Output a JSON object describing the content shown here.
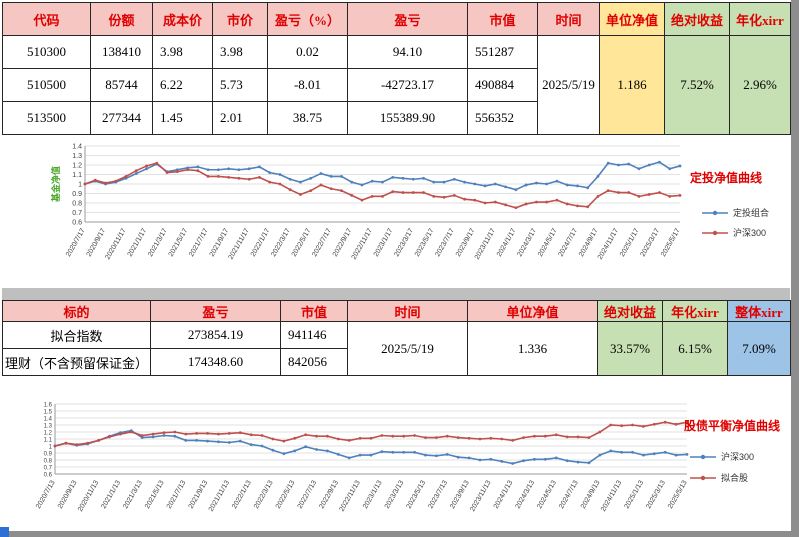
{
  "colors": {
    "header_pink": "#f5c6c2",
    "highlight_yellow": "#ffe699",
    "highlight_green": "#c6e0b4",
    "highlight_blue": "#9dc3e6",
    "header_text_red": "#e00000",
    "series_blue": "#4f81bd",
    "series_red": "#c0504d"
  },
  "table1": {
    "headers": [
      "代码",
      "份额",
      "成本价",
      "市价",
      "盈亏（%）",
      "盈亏",
      "市值",
      "时间",
      "单位净值",
      "绝对收益",
      "年化xirr"
    ],
    "rows": [
      {
        "code": "510300",
        "shares": "138410",
        "cost": "3.98",
        "price": "3.98",
        "pnl_pct": "0.02",
        "pnl": "94.10",
        "value": "551287"
      },
      {
        "code": "510500",
        "shares": "85744",
        "cost": "6.22",
        "price": "5.73",
        "pnl_pct": "-8.01",
        "pnl": "-42723.17",
        "value": "490884"
      },
      {
        "code": "513500",
        "shares": "277344",
        "cost": "1.45",
        "price": "2.01",
        "pnl_pct": "38.75",
        "pnl": "155389.90",
        "value": "556352"
      }
    ],
    "time": "2025/5/19",
    "unit_nav": "1.186",
    "abs_return": "7.52%",
    "xirr": "2.96%"
  },
  "table2": {
    "headers": [
      "标的",
      "盈亏",
      "市值",
      "时间",
      "单位净值",
      "绝对收益",
      "年化xirr",
      "整体xirr"
    ],
    "rows": [
      {
        "name": "拟合指数",
        "pnl": "273854.19",
        "value": "941146"
      },
      {
        "name": "理财（不含预留保证金）",
        "pnl": "174348.60",
        "value": "842056"
      }
    ],
    "time": "2025/5/19",
    "unit_nav": "1.336",
    "abs_return": "33.57%",
    "xirr": "6.15%",
    "overall_xirr": "7.09%"
  },
  "chart_data": [
    {
      "type": "line",
      "title": "定投净值曲线",
      "title_color": "#e00000",
      "ylabel": "基金净值",
      "ylabel_color": "#4ea72e",
      "ylim": [
        0.6,
        1.4
      ],
      "yticks": [
        0.6,
        0.7,
        0.8,
        0.9,
        1.0,
        1.1,
        1.2,
        1.3,
        1.4
      ],
      "grid": true,
      "legend_position": "right",
      "xtick_every": 2,
      "x": [
        "2020/7/17",
        "2020/8/17",
        "2020/9/17",
        "2020/10/17",
        "2020/11/17",
        "2020/12/17",
        "2021/1/17",
        "2021/2/17",
        "2021/3/17",
        "2021/4/17",
        "2021/5/17",
        "2021/6/17",
        "2021/7/17",
        "2021/8/17",
        "2021/9/17",
        "2021/10/17",
        "2021/11/17",
        "2021/12/17",
        "2022/1/17",
        "2022/2/17",
        "2022/3/17",
        "2022/4/17",
        "2022/5/17",
        "2022/6/17",
        "2022/7/17",
        "2022/8/17",
        "2022/9/17",
        "2022/10/17",
        "2022/11/17",
        "2022/12/17",
        "2023/1/17",
        "2023/2/17",
        "2023/3/17",
        "2023/4/17",
        "2023/5/17",
        "2023/6/17",
        "2023/7/17",
        "2023/8/17",
        "2023/9/17",
        "2023/10/17",
        "2023/11/17",
        "2023/12/17",
        "2024/1/17",
        "2024/2/17",
        "2024/3/17",
        "2024/4/17",
        "2024/5/17",
        "2024/6/17",
        "2024/7/17",
        "2024/8/17",
        "2024/9/17",
        "2024/10/17",
        "2024/11/17",
        "2024/12/17",
        "2025/1/17",
        "2025/2/17",
        "2025/3/17",
        "2025/4/17",
        "2025/5/17"
      ],
      "series": [
        {
          "name": "定投组合",
          "color": "#4f81bd",
          "values": [
            1.0,
            1.03,
            1.0,
            1.02,
            1.06,
            1.11,
            1.16,
            1.21,
            1.13,
            1.15,
            1.17,
            1.18,
            1.15,
            1.15,
            1.16,
            1.15,
            1.16,
            1.18,
            1.12,
            1.1,
            1.05,
            1.02,
            1.06,
            1.11,
            1.08,
            1.08,
            1.02,
            0.99,
            1.03,
            1.02,
            1.07,
            1.06,
            1.05,
            1.06,
            1.02,
            1.02,
            1.05,
            1.02,
            1.0,
            0.98,
            1.0,
            0.97,
            0.94,
            0.99,
            1.01,
            1.0,
            1.03,
            0.99,
            0.98,
            0.96,
            1.08,
            1.22,
            1.2,
            1.21,
            1.16,
            1.2,
            1.23,
            1.16,
            1.19
          ]
        },
        {
          "name": "沪深300",
          "color": "#c0504d",
          "values": [
            1.0,
            1.04,
            1.01,
            1.03,
            1.08,
            1.14,
            1.19,
            1.22,
            1.12,
            1.13,
            1.15,
            1.14,
            1.08,
            1.08,
            1.07,
            1.06,
            1.05,
            1.07,
            1.02,
            1.0,
            0.94,
            0.89,
            0.93,
            0.99,
            0.95,
            0.93,
            0.88,
            0.83,
            0.87,
            0.87,
            0.92,
            0.91,
            0.91,
            0.91,
            0.87,
            0.86,
            0.88,
            0.84,
            0.83,
            0.8,
            0.81,
            0.78,
            0.75,
            0.79,
            0.81,
            0.81,
            0.83,
            0.79,
            0.77,
            0.76,
            0.87,
            0.93,
            0.91,
            0.91,
            0.87,
            0.89,
            0.91,
            0.87,
            0.88
          ]
        }
      ]
    },
    {
      "type": "line",
      "title": "股债平衡净值曲线",
      "title_color": "#e00000",
      "ylim": [
        0.6,
        1.6
      ],
      "yticks": [
        0.6,
        0.7,
        0.8,
        0.9,
        1.0,
        1.1,
        1.2,
        1.3,
        1.4,
        1.5,
        1.6
      ],
      "grid": true,
      "legend_position": "right",
      "xtick_every": 2,
      "x": [
        "2020/7/13",
        "2020/8/13",
        "2020/9/13",
        "2020/10/13",
        "2020/11/13",
        "2020/12/13",
        "2021/1/13",
        "2021/2/13",
        "2021/3/13",
        "2021/4/13",
        "2021/5/13",
        "2021/6/13",
        "2021/7/13",
        "2021/8/13",
        "2021/9/13",
        "2021/10/13",
        "2021/11/13",
        "2021/12/13",
        "2022/1/13",
        "2022/2/13",
        "2022/3/13",
        "2022/4/13",
        "2022/5/13",
        "2022/6/13",
        "2022/7/13",
        "2022/8/13",
        "2022/9/13",
        "2022/10/13",
        "2022/11/13",
        "2022/12/13",
        "2023/1/13",
        "2023/2/13",
        "2023/3/13",
        "2023/4/13",
        "2023/5/13",
        "2023/6/13",
        "2023/7/13",
        "2023/8/13",
        "2023/9/13",
        "2023/10/13",
        "2023/11/13",
        "2023/12/13",
        "2024/1/13",
        "2024/2/13",
        "2024/3/13",
        "2024/4/13",
        "2024/5/13",
        "2024/6/13",
        "2024/7/13",
        "2024/8/13",
        "2024/9/13",
        "2024/10/13",
        "2024/11/13",
        "2024/12/13",
        "2025/1/13",
        "2025/2/13",
        "2025/3/13",
        "2025/4/13",
        "2025/5/13"
      ],
      "series": [
        {
          "name": "沪深300",
          "color": "#4f81bd",
          "values": [
            1.0,
            1.04,
            1.01,
            1.03,
            1.08,
            1.14,
            1.19,
            1.22,
            1.12,
            1.13,
            1.15,
            1.14,
            1.08,
            1.08,
            1.07,
            1.06,
            1.05,
            1.07,
            1.02,
            1.0,
            0.94,
            0.89,
            0.93,
            0.99,
            0.95,
            0.93,
            0.88,
            0.83,
            0.87,
            0.87,
            0.92,
            0.91,
            0.91,
            0.91,
            0.87,
            0.86,
            0.88,
            0.84,
            0.83,
            0.8,
            0.81,
            0.78,
            0.75,
            0.79,
            0.81,
            0.81,
            0.83,
            0.79,
            0.77,
            0.76,
            0.87,
            0.93,
            0.91,
            0.91,
            0.87,
            0.89,
            0.91,
            0.87,
            0.88
          ]
        },
        {
          "name": "拟合股",
          "color": "#c0504d",
          "values": [
            1.0,
            1.04,
            1.02,
            1.04,
            1.08,
            1.13,
            1.17,
            1.2,
            1.15,
            1.17,
            1.19,
            1.2,
            1.17,
            1.18,
            1.18,
            1.17,
            1.18,
            1.19,
            1.16,
            1.15,
            1.1,
            1.07,
            1.11,
            1.16,
            1.14,
            1.14,
            1.1,
            1.08,
            1.11,
            1.11,
            1.15,
            1.14,
            1.14,
            1.15,
            1.12,
            1.12,
            1.14,
            1.12,
            1.11,
            1.1,
            1.11,
            1.1,
            1.08,
            1.12,
            1.14,
            1.14,
            1.16,
            1.13,
            1.13,
            1.12,
            1.2,
            1.3,
            1.29,
            1.3,
            1.28,
            1.31,
            1.34,
            1.31,
            1.34
          ]
        }
      ]
    }
  ]
}
